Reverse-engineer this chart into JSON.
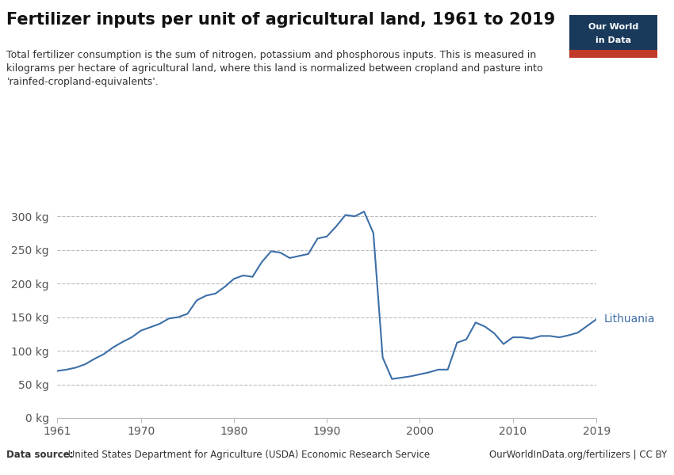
{
  "title": "Fertilizer inputs per unit of agricultural land, 1961 to 2019",
  "subtitle": "Total fertilizer consumption is the sum of nitrogen, potassium and phosphorous inputs. This is measured in\nkilograms per hectare of agricultural land, where this land is normalized between cropland and pasture into\n'rainfed-cropland-equivalents'.",
  "datasource_bold": "Data source:",
  "datasource_rest": " United States Department for Agriculture (USDA) Economic Research Service",
  "copyright": "OurWorldInData.org/fertilizers | CC BY",
  "line_color": "#3d6fa8",
  "background_color": "#ffffff",
  "label": "Lithuania",
  "years": [
    1961,
    1962,
    1963,
    1964,
    1965,
    1966,
    1967,
    1968,
    1969,
    1970,
    1971,
    1972,
    1973,
    1974,
    1975,
    1976,
    1977,
    1978,
    1979,
    1980,
    1981,
    1982,
    1983,
    1984,
    1985,
    1986,
    1987,
    1988,
    1989,
    1990,
    1991,
    1992,
    1993,
    1994,
    1995,
    1996,
    1997,
    1998,
    1999,
    2000,
    2001,
    2002,
    2003,
    2004,
    2005,
    2006,
    2007,
    2008,
    2009,
    2010,
    2011,
    2012,
    2013,
    2014,
    2015,
    2016,
    2017,
    2018,
    2019
  ],
  "values": [
    70,
    72,
    75,
    80,
    88,
    95,
    105,
    113,
    120,
    130,
    135,
    140,
    148,
    150,
    155,
    175,
    182,
    185,
    195,
    207,
    212,
    210,
    232,
    248,
    246,
    238,
    241,
    244,
    267,
    270,
    285,
    302,
    300,
    307,
    275,
    90,
    58,
    60,
    62,
    65,
    68,
    72,
    72,
    112,
    117,
    142,
    136,
    126,
    110,
    120,
    120,
    118,
    122,
    122,
    120,
    123,
    127,
    137,
    147
  ],
  "ylim": [
    0,
    325
  ],
  "xlim": [
    1961,
    2019
  ],
  "yticks": [
    0,
    50,
    100,
    150,
    200,
    250,
    300
  ],
  "ytick_labels": [
    "0 kg",
    "50 kg",
    "100 kg",
    "150 kg",
    "200 kg",
    "250 kg",
    "300 kg"
  ],
  "xticks": [
    1961,
    1970,
    1980,
    1990,
    2000,
    2010,
    2019
  ],
  "owid_box_color": "#1a3a5c",
  "owid_red": "#c0392b",
  "grid_color": "#bbbbbb",
  "spine_color": "#bbbbbb",
  "tick_color": "#555555",
  "title_fontsize": 15,
  "subtitle_fontsize": 9,
  "footer_fontsize": 8.5,
  "tick_fontsize": 10
}
